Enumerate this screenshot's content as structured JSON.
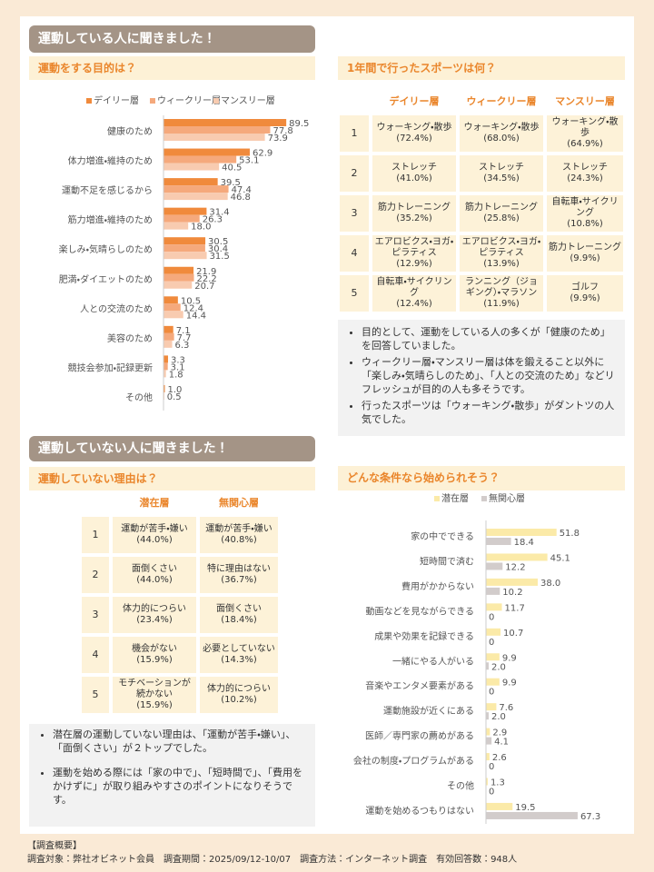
{
  "sections": [
    {
      "title": "運動している人に聞きました！"
    },
    {
      "title": "運動していない人に聞きました！"
    }
  ],
  "chart_data": [
    {
      "type": "bar",
      "orientation": "horizontal",
      "title": "運動をする目的は？",
      "categories": [
        "健康のため",
        "体力増進・維持のため",
        "運動不足を感じるから",
        "筋力増進・維持のため",
        "楽しみ・気晴らしのため",
        "肥満・ダイエットのため",
        "人との交流のため",
        "美容のため",
        "競技会参加・記録更新",
        "その他"
      ],
      "series": [
        {
          "name": "デイリー層",
          "color": "#f08a3c",
          "values": [
            89.5,
            62.9,
            39.5,
            31.4,
            30.5,
            21.9,
            10.5,
            7.1,
            3.3,
            1.0
          ],
          "value_labels": [
            "89.5",
            "62.9",
            "39.5",
            "31.4",
            "30.5",
            "21.9",
            "10.5",
            "7.1",
            "3.3",
            "1.0"
          ]
        },
        {
          "name": "ウィークリー層",
          "color": "#f5a97c",
          "values": [
            77.8,
            53.1,
            47.4,
            26.3,
            30.4,
            22.2,
            12.4,
            7.7,
            3.1,
            0.5
          ],
          "value_labels": [
            "77.8",
            "53.1",
            "47.4",
            "26.3",
            "30.4",
            "22.2",
            "12.4",
            "7.7",
            "3.1",
            "0.5"
          ]
        },
        {
          "name": "マンスリー層",
          "color": "#f8cbb0",
          "values": [
            73.9,
            40.5,
            46.8,
            18.0,
            31.5,
            20.7,
            14.4,
            6.3,
            1.8,
            null
          ],
          "value_labels": [
            "73.9",
            "40.5",
            "46.8",
            "18.0",
            "31.5",
            "20.7",
            "14.4",
            "6.3",
            "1.8",
            null
          ]
        }
      ]
    },
    {
      "type": "bar",
      "orientation": "horizontal",
      "title": "どんな条件なら始められそう？",
      "categories": [
        "家の中でできる",
        "短時間で済む",
        "費用がかからない",
        "動画などを見ながらできる",
        "成果や効果を記録できる",
        "一緒にやる人がいる",
        "音楽やエンタメ要素がある",
        "運動施設が近くにある",
        "医師／専門家の薦めがある",
        "会社の制度・プログラムがある",
        "その他",
        "運動を始めるつもりはない"
      ],
      "series": [
        {
          "name": "潜在層",
          "color": "#fbeaa8",
          "values": [
            51.8,
            45.1,
            38.0,
            11.7,
            10.7,
            9.9,
            9.9,
            7.6,
            2.9,
            2.6,
            1.3,
            19.5
          ],
          "value_labels": [
            "51.8",
            "45.1",
            "38.0",
            "11.7",
            "10.7",
            "9.9",
            "9.9",
            "7.6",
            "2.9",
            "2.6",
            "1.3",
            "19.5"
          ]
        },
        {
          "name": "無関心層",
          "color": "#d2cccb",
          "values": [
            18.4,
            12.2,
            10.2,
            0,
            0,
            2.0,
            0,
            2.0,
            4.1,
            0,
            0,
            67.3
          ],
          "value_labels": [
            "18.4",
            "12.2",
            "10.2",
            "0",
            "0",
            "2.0",
            "0",
            "2.0",
            "4.1",
            "0",
            "0",
            "67.3"
          ]
        }
      ]
    }
  ],
  "sports_table": {
    "title": "1年間で行ったスポーツは何？",
    "columns": [
      "デイリー層",
      "ウィークリー層",
      "マンスリー層"
    ],
    "rows": [
      {
        "rank": 1,
        "cells": [
          [
            "ウォーキング・散歩",
            "(72.4%)"
          ],
          [
            "ウォーキング・散歩",
            "(68.0%)"
          ],
          [
            "ウォーキング・散歩",
            "(64.9%)"
          ]
        ]
      },
      {
        "rank": 2,
        "cells": [
          [
            "ストレッチ",
            "(41.0%)"
          ],
          [
            "ストレッチ",
            "(34.5%)"
          ],
          [
            "ストレッチ",
            "(24.3%)"
          ]
        ]
      },
      {
        "rank": 3,
        "cells": [
          [
            "筋力トレーニング",
            "(35.2%)"
          ],
          [
            "筋力トレーニング",
            "(25.8%)"
          ],
          [
            "自転車・サイクリング",
            "(10.8%)"
          ]
        ]
      },
      {
        "rank": 4,
        "cells": [
          [
            "エアロビクス・ヨガ・ピラティス",
            "(12.9%)"
          ],
          [
            "エアロビクス・ヨガ・ピラティス",
            "(13.9%)"
          ],
          [
            "筋力トレーニング",
            "(9.9%)"
          ]
        ]
      },
      {
        "rank": 5,
        "cells": [
          [
            "自転車・サイクリング",
            "(12.4%)"
          ],
          [
            "ランニング（ジョギング）・マラソン",
            "(11.9%)"
          ],
          [
            "ゴルフ",
            "(9.9%)"
          ]
        ]
      }
    ]
  },
  "reasons_table": {
    "title": "運動していない理由は？",
    "columns": [
      "潜在層",
      "無関心層"
    ],
    "rows": [
      {
        "rank": 1,
        "cells": [
          [
            "運動が苦手・嫌い",
            "(44.0%)"
          ],
          [
            "運動が苦手・嫌い",
            "(40.8%)"
          ]
        ]
      },
      {
        "rank": 2,
        "cells": [
          [
            "面倒くさい",
            "(44.0%)"
          ],
          [
            "特に理由はない",
            "(36.7%)"
          ]
        ]
      },
      {
        "rank": 3,
        "cells": [
          [
            "体力的につらい",
            "(23.4%)"
          ],
          [
            "面倒くさい",
            "(18.4%)"
          ]
        ]
      },
      {
        "rank": 4,
        "cells": [
          [
            "機会がない",
            "(15.9%)"
          ],
          [
            "必要としていない",
            "(14.3%)"
          ]
        ]
      },
      {
        "rank": 5,
        "cells": [
          [
            "モチベーションが続かない",
            "(15.9%)"
          ],
          [
            "体力的につらい",
            "(10.2%)"
          ]
        ]
      }
    ]
  },
  "sports_notes": [
    "目的として、運動をしている人の多くが「健康のため」を回答していました。",
    "ウィークリー層・マンスリー層は体を鍛えること以外に「楽しみ・気晴らしのため」、「人との交流のため」などリフレッシュが目的の人も多そうです。",
    "行ったスポーツは「ウォーキング・散歩」がダントツの人気でした。"
  ],
  "reasons_notes": [
    "潜在層の運動していない理由は、「運動が苦手・嫌い」、「面倒くさい」が２トップでした。",
    "運動を始める際には「家の中で」、「短時間で」、「費用をかけずに」が取り組みやすさのポイントになりそうです。"
  ],
  "footer": {
    "heading": "【調査概要】",
    "text": "調査対象：弊社オビネット会員　調査期間：2025/09/12-10/07　調査方法：インターネット調査　有効回答数：948人"
  }
}
